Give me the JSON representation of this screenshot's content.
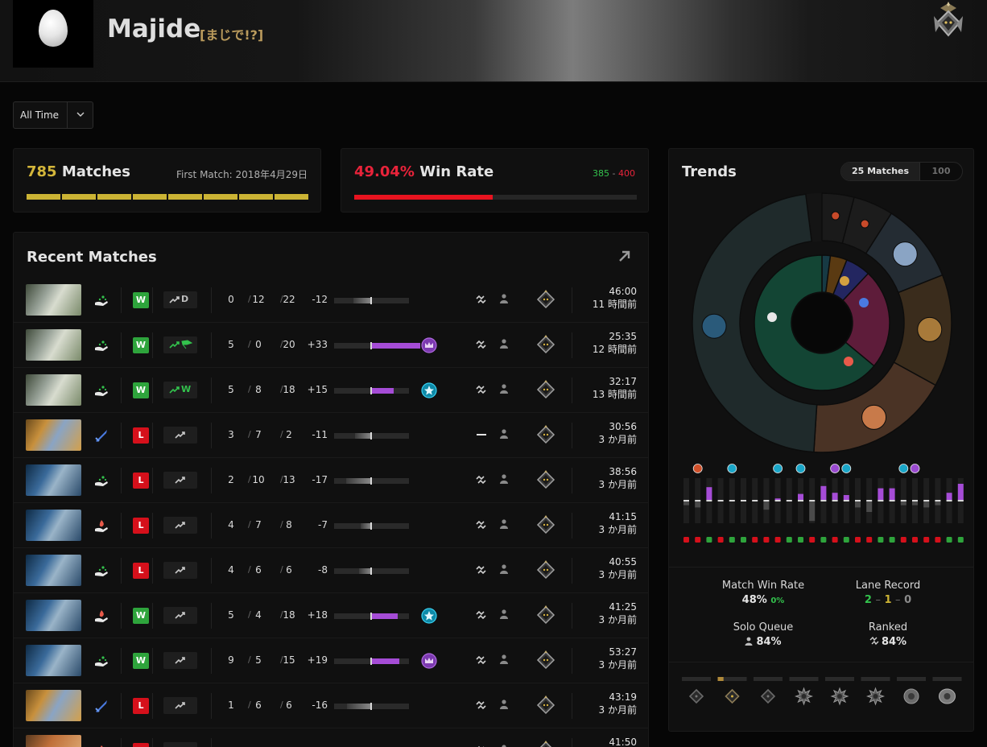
{
  "header": {
    "player_name": "Majide",
    "player_tag": "[まじで!?]",
    "avatar": "egg",
    "rank_badge": "rank-badge-icon"
  },
  "filter": {
    "label": "All Time"
  },
  "matches_card": {
    "count": "785",
    "label": "Matches",
    "first_match": "First Match: 2018年4月29日",
    "segments": 8
  },
  "winrate_card": {
    "value": "49.04%",
    "label": "Win Rate",
    "wins": "385",
    "losses": "400",
    "dash": "-",
    "win_rate": 0.4904
  },
  "recent": {
    "title": "Recent Matches",
    "matches": [
      {
        "hero": "omniknight",
        "role": "support",
        "result": "W",
        "lane": "D",
        "kills": "0",
        "deaths": "12",
        "assists": "22",
        "impact": "-12",
        "impact_val": -12,
        "award": "",
        "party": "ranked",
        "time": "46:00",
        "ago": "11 時間前"
      },
      {
        "hero": "omniknight",
        "role": "support",
        "result": "W",
        "lane": "win-win",
        "kills": "5",
        "deaths": "0",
        "assists": "20",
        "impact": "+33",
        "impact_val": 33,
        "award": "mvp",
        "party": "ranked",
        "time": "25:35",
        "ago": "12 時間前"
      },
      {
        "hero": "omniknight",
        "role": "support",
        "result": "W",
        "lane": "W",
        "kills": "5",
        "deaths": "8",
        "assists": "18",
        "impact": "+15",
        "impact_val": 15,
        "award": "top-core",
        "party": "ranked",
        "time": "32:17",
        "ago": "13 時間前"
      },
      {
        "hero": "zeus",
        "role": "core",
        "result": "L",
        "lane": "",
        "kills": "3",
        "deaths": "7",
        "assists": "2",
        "impact": "-11",
        "impact_val": -11,
        "award": "",
        "party": "unranked",
        "time": "30:56",
        "ago": "3 か月前"
      },
      {
        "hero": "grimstroke",
        "role": "support",
        "result": "L",
        "lane": "",
        "kills": "2",
        "deaths": "10",
        "assists": "13",
        "impact": "-17",
        "impact_val": -17,
        "award": "",
        "party": "ranked",
        "time": "38:56",
        "ago": "3 か月前"
      },
      {
        "hero": "grimstroke",
        "role": "hard-support",
        "result": "L",
        "lane": "",
        "kills": "4",
        "deaths": "7",
        "assists": "8",
        "impact": "-7",
        "impact_val": -7,
        "award": "",
        "party": "ranked",
        "time": "41:15",
        "ago": "3 か月前"
      },
      {
        "hero": "grimstroke",
        "role": "support",
        "result": "L",
        "lane": "",
        "kills": "4",
        "deaths": "6",
        "assists": "6",
        "impact": "-8",
        "impact_val": -8,
        "award": "",
        "party": "ranked",
        "time": "40:55",
        "ago": "3 か月前"
      },
      {
        "hero": "grimstroke",
        "role": "hard-support",
        "result": "W",
        "lane": "",
        "kills": "5",
        "deaths": "4",
        "assists": "18",
        "impact": "+18",
        "impact_val": 18,
        "award": "top-core",
        "party": "ranked",
        "time": "41:25",
        "ago": "3 か月前"
      },
      {
        "hero": "grimstroke",
        "role": "support",
        "result": "W",
        "lane": "",
        "lane_dir": "left",
        "kills": "9",
        "deaths": "5",
        "assists": "15",
        "impact": "+19",
        "impact_val": 19,
        "award": "mvp",
        "party": "ranked",
        "time": "53:27",
        "ago": "3 か月前"
      },
      {
        "hero": "zeus",
        "role": "core",
        "result": "L",
        "lane": "",
        "lane_dir": "left",
        "kills": "1",
        "deaths": "6",
        "assists": "6",
        "impact": "-16",
        "impact_val": -16,
        "award": "",
        "party": "ranked",
        "time": "43:19",
        "ago": "3 か月前"
      },
      {
        "hero": "windranger",
        "role": "hard-support",
        "result": "L",
        "lane": "",
        "kills": "",
        "deaths": "",
        "assists": "",
        "impact": "",
        "impact_val": 0,
        "award": "",
        "party": "ranked",
        "time": "41:50",
        "ago": ""
      }
    ]
  },
  "trends": {
    "title": "Trends",
    "toggle": {
      "left": "25 Matches",
      "right": "100"
    },
    "hero_slices": [
      {
        "hero": "grimstroke",
        "share": 0.47,
        "color": "#1f2a2b"
      },
      {
        "hero": "windranger",
        "share": 0.18,
        "color": "#4a3325"
      },
      {
        "hero": "troll-warlord",
        "share": 0.14,
        "color": "#3a2c1c"
      },
      {
        "hero": "zeus",
        "share": 0.1,
        "color": "#242c33"
      },
      {
        "hero": "hero-5",
        "share": 0.05,
        "color": "#1c1c1c"
      },
      {
        "hero": "hero-6",
        "share": 0.04,
        "color": "#1a1a1a"
      }
    ],
    "role_slices": [
      {
        "role": "support",
        "share": 0.64,
        "color": "#134534"
      },
      {
        "role": "hard-support",
        "share": 0.24,
        "color": "#5e1c3a"
      },
      {
        "role": "core",
        "share": 0.06,
        "color": "#232660"
      },
      {
        "role": "offlane",
        "share": 0.04,
        "color": "#5a3a12"
      },
      {
        "role": "mid",
        "share": 0.02,
        "color": "#173a44"
      }
    ],
    "game_impacts": [
      {
        "v": -0.2,
        "r": "L"
      },
      {
        "v": -0.3,
        "r": "L"
      },
      {
        "v": 0.6,
        "r": "W"
      },
      {
        "v": 0,
        "r": "L"
      },
      {
        "v": 0,
        "r": "W"
      },
      {
        "v": 0,
        "r": "W"
      },
      {
        "v": 0,
        "r": "L"
      },
      {
        "v": -0.4,
        "r": "L"
      },
      {
        "v": 0.1,
        "r": "L"
      },
      {
        "v": 0,
        "r": "W"
      },
      {
        "v": 0.3,
        "r": "W"
      },
      {
        "v": -0.9,
        "r": "L"
      },
      {
        "v": 0.65,
        "r": "W"
      },
      {
        "v": 0.35,
        "r": "L"
      },
      {
        "v": 0.25,
        "r": "W"
      },
      {
        "v": -0.3,
        "r": "L"
      },
      {
        "v": -0.5,
        "r": "L"
      },
      {
        "v": 0.55,
        "r": "W"
      },
      {
        "v": 0.55,
        "r": "W"
      },
      {
        "v": -0.2,
        "r": "L"
      },
      {
        "v": -0.2,
        "r": "L"
      },
      {
        "v": -0.3,
        "r": "L"
      },
      {
        "v": -0.2,
        "r": "L"
      },
      {
        "v": 0.35,
        "r": "W"
      },
      {
        "v": 0.75,
        "r": "W"
      },
      {
        "v": -0.4,
        "r": "W"
      }
    ],
    "awards_above": [
      {
        "i": 1,
        "t": "top-core"
      },
      {
        "i": 4,
        "t": "support"
      },
      {
        "i": 8,
        "t": "support"
      },
      {
        "i": 10,
        "t": "support"
      },
      {
        "i": 13,
        "t": "mvp"
      },
      {
        "i": 14,
        "t": "support"
      },
      {
        "i": 19,
        "t": "support"
      },
      {
        "i": 20,
        "t": "mvp"
      }
    ],
    "match_win_rate_label": "Match Win Rate",
    "match_win_rate": "48%",
    "match_win_rate_delta": "0%",
    "lane_record_label": "Lane Record",
    "lane_w": "2",
    "lane_d": "1",
    "lane_l": "0",
    "lane_dash": "–",
    "solo_label": "Solo Queue",
    "solo_value": "84%",
    "ranked_label": "Ranked",
    "ranked_value": "84%",
    "rank_distribution": [
      0.0,
      0.2,
      0.0,
      0.0,
      0.0,
      0.0,
      0.0,
      0.0
    ],
    "rank_tiers": [
      "herald",
      "guardian",
      "crusader",
      "archon",
      "legend",
      "ancient",
      "divine",
      "immortal"
    ]
  },
  "colors": {
    "win": "#2ea43c",
    "loss": "#d5101b",
    "accent_gold": "#cbb334",
    "impact_pos": "#a54cd6"
  },
  "icons": {
    "expand": "expand-arrow-icon",
    "chevron": "chevron-down-icon",
    "ranked": "ranked-icon",
    "solo": "solo-icon"
  }
}
